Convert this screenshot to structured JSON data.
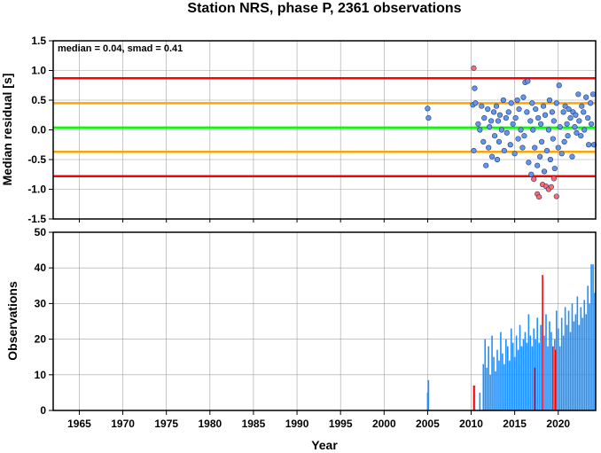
{
  "chart_data": [
    {
      "type": "scatter",
      "title": "Station NRS, phase P, 2361 observations",
      "ylabel": "Median residual [s]",
      "annotation": "median = 0.04, smad = 0.41",
      "xlim": [
        1962,
        2024.3
      ],
      "ylim": [
        -1.5,
        1.5
      ],
      "yticks": [
        1.5,
        1.0,
        0.5,
        0.0,
        -0.5,
        -1.0,
        -1.5
      ],
      "ytick_labels": [
        "1.5",
        "1.0",
        "0.5",
        "0.0",
        "-0.5",
        "-1.0",
        "-1.5"
      ],
      "grid": true,
      "reference_lines": [
        {
          "y": 0.87,
          "color": "#ff0000"
        },
        {
          "y": 0.45,
          "color": "#ffa500"
        },
        {
          "y": 0.04,
          "color": "#00ff00"
        },
        {
          "y": -0.37,
          "color": "#ffa500"
        },
        {
          "y": -0.78,
          "color": "#ff0000"
        }
      ],
      "series": [
        {
          "color": "#6495ed",
          "points": [
            [
              2005.0,
              0.36
            ],
            [
              2005.1,
              0.2
            ],
            [
              2010.2,
              0.42
            ],
            [
              2010.3,
              -0.35
            ],
            [
              2010.4,
              0.7
            ],
            [
              2010.5,
              0.45
            ],
            [
              2010.8,
              0.1
            ],
            [
              2011.0,
              0.0
            ],
            [
              2011.2,
              0.4
            ],
            [
              2011.4,
              -0.2
            ],
            [
              2011.5,
              0.2
            ],
            [
              2011.7,
              -0.6
            ],
            [
              2011.9,
              0.35
            ],
            [
              2012.0,
              -0.3
            ],
            [
              2012.1,
              0.05
            ],
            [
              2012.3,
              0.15
            ],
            [
              2012.4,
              -0.45
            ],
            [
              2012.6,
              0.3
            ],
            [
              2012.7,
              -0.1
            ],
            [
              2012.9,
              0.4
            ],
            [
              2013.0,
              -0.5
            ],
            [
              2013.1,
              0.15
            ],
            [
              2013.2,
              -0.2
            ],
            [
              2013.3,
              0.25
            ],
            [
              2013.5,
              0.0
            ],
            [
              2013.7,
              0.5
            ],
            [
              2013.8,
              -0.35
            ],
            [
              2014.0,
              0.2
            ],
            [
              2014.1,
              -0.05
            ],
            [
              2014.3,
              0.3
            ],
            [
              2014.5,
              -0.25
            ],
            [
              2014.6,
              0.45
            ],
            [
              2014.8,
              0.1
            ],
            [
              2015.0,
              -0.4
            ],
            [
              2015.1,
              0.2
            ],
            [
              2015.3,
              0.5
            ],
            [
              2015.4,
              -0.15
            ],
            [
              2015.5,
              0.35
            ],
            [
              2015.7,
              0.0
            ],
            [
              2015.9,
              -0.3
            ],
            [
              2016.0,
              0.55
            ],
            [
              2016.1,
              -0.1
            ],
            [
              2016.2,
              0.8
            ],
            [
              2016.4,
              0.3
            ],
            [
              2016.5,
              0.82
            ],
            [
              2016.6,
              -0.55
            ],
            [
              2016.8,
              0.15
            ],
            [
              2016.9,
              -0.75
            ],
            [
              2017.0,
              0.45
            ],
            [
              2017.1,
              0.0
            ],
            [
              2017.3,
              -0.3
            ],
            [
              2017.4,
              0.35
            ],
            [
              2017.6,
              -0.6
            ],
            [
              2017.7,
              0.2
            ],
            [
              2017.9,
              -0.45
            ],
            [
              2018.0,
              0.1
            ],
            [
              2018.1,
              -0.2
            ],
            [
              2018.3,
              0.4
            ],
            [
              2018.4,
              -0.7
            ],
            [
              2018.5,
              0.25
            ],
            [
              2018.7,
              -0.35
            ],
            [
              2018.9,
              0.0
            ],
            [
              2019.0,
              0.5
            ],
            [
              2019.1,
              -0.5
            ],
            [
              2019.3,
              0.3
            ],
            [
              2019.4,
              -0.15
            ],
            [
              2019.5,
              0.15
            ],
            [
              2019.6,
              -0.65
            ],
            [
              2019.8,
              0.45
            ],
            [
              2020.0,
              -0.3
            ],
            [
              2020.1,
              0.75
            ],
            [
              2020.2,
              0.05
            ],
            [
              2020.4,
              -0.4
            ],
            [
              2020.6,
              0.3
            ],
            [
              2020.7,
              -0.2
            ],
            [
              2020.8,
              0.4
            ],
            [
              2021.0,
              0.1
            ],
            [
              2021.1,
              -0.1
            ],
            [
              2021.2,
              0.35
            ],
            [
              2021.4,
              0.2
            ],
            [
              2021.6,
              -0.45
            ],
            [
              2021.7,
              0.3
            ],
            [
              2021.9,
              0.05
            ],
            [
              2022.0,
              0.25
            ],
            [
              2022.1,
              -0.05
            ],
            [
              2022.3,
              0.6
            ],
            [
              2022.4,
              0.15
            ],
            [
              2022.6,
              -0.1
            ],
            [
              2022.7,
              0.4
            ],
            [
              2022.9,
              0.3
            ],
            [
              2023.0,
              0.0
            ],
            [
              2023.2,
              0.55
            ],
            [
              2023.4,
              0.2
            ],
            [
              2023.5,
              -0.25
            ],
            [
              2023.7,
              0.45
            ],
            [
              2023.8,
              0.1
            ],
            [
              2024.0,
              0.6
            ],
            [
              2024.1,
              -0.25
            ]
          ]
        },
        {
          "color": "#ff6a6a",
          "points": [
            [
              2010.3,
              1.04
            ],
            [
              2017.2,
              -0.83
            ],
            [
              2017.6,
              -1.08
            ],
            [
              2017.8,
              -1.13
            ],
            [
              2018.2,
              -0.92
            ],
            [
              2018.6,
              -0.95
            ],
            [
              2018.9,
              -1.0
            ],
            [
              2019.2,
              -0.96
            ],
            [
              2019.5,
              -0.82
            ],
            [
              2019.8,
              -1.12
            ]
          ]
        }
      ]
    },
    {
      "type": "bar",
      "xlabel": "Year",
      "ylabel": "Observations",
      "xlim": [
        1962,
        2024.3
      ],
      "ylim": [
        0,
        50
      ],
      "xticks": [
        1965,
        1970,
        1975,
        1980,
        1985,
        1990,
        1995,
        2000,
        2005,
        2010,
        2015,
        2020
      ],
      "xtick_labels": [
        "1965",
        "1970",
        "1975",
        "1980",
        "1985",
        "1990",
        "1995",
        "2000",
        "2005",
        "2010",
        "2015",
        "2020"
      ],
      "yticks": [
        0,
        10,
        20,
        30,
        40,
        50
      ],
      "ytick_labels": [
        "0",
        "10",
        "20",
        "30",
        "40",
        "50"
      ],
      "grid": true,
      "series": [
        {
          "color": "#1e90ff",
          "bars": [
            [
              2005.0,
              5
            ],
            [
              2005.1,
              8.5
            ],
            [
              2010.4,
              7
            ],
            [
              2011.0,
              5
            ],
            [
              2011.4,
              13
            ],
            [
              2011.6,
              20
            ],
            [
              2011.8,
              12
            ],
            [
              2012.0,
              18
            ],
            [
              2012.2,
              10
            ],
            [
              2012.4,
              21
            ],
            [
              2012.6,
              15
            ],
            [
              2012.8,
              11
            ],
            [
              2013.0,
              17
            ],
            [
              2013.2,
              14
            ],
            [
              2013.4,
              22
            ],
            [
              2013.6,
              16
            ],
            [
              2013.8,
              13
            ],
            [
              2014.0,
              20
            ],
            [
              2014.2,
              18
            ],
            [
              2014.4,
              14
            ],
            [
              2014.6,
              23
            ],
            [
              2014.8,
              19
            ],
            [
              2015.0,
              15
            ],
            [
              2015.2,
              21
            ],
            [
              2015.4,
              17
            ],
            [
              2015.6,
              24
            ],
            [
              2015.8,
              18
            ],
            [
              2016.0,
              20
            ],
            [
              2016.2,
              22
            ],
            [
              2016.4,
              19
            ],
            [
              2016.6,
              27
            ],
            [
              2016.8,
              21
            ],
            [
              2017.0,
              18
            ],
            [
              2017.2,
              23
            ],
            [
              2017.4,
              20
            ],
            [
              2017.6,
              26
            ],
            [
              2017.8,
              19
            ],
            [
              2018.0,
              24
            ],
            [
              2018.4,
              21
            ],
            [
              2018.6,
              27
            ],
            [
              2018.8,
              18
            ],
            [
              2019.0,
              25
            ],
            [
              2019.2,
              22
            ],
            [
              2019.6,
              20
            ],
            [
              2019.8,
              28
            ],
            [
              2020.0,
              23
            ],
            [
              2020.2,
              18
            ],
            [
              2020.4,
              26
            ],
            [
              2020.6,
              21
            ],
            [
              2020.8,
              29
            ],
            [
              2021.0,
              24
            ],
            [
              2021.2,
              28
            ],
            [
              2021.4,
              22
            ],
            [
              2021.6,
              30
            ],
            [
              2021.8,
              25
            ],
            [
              2022.0,
              27
            ],
            [
              2022.2,
              32
            ],
            [
              2022.4,
              24
            ],
            [
              2022.6,
              29
            ],
            [
              2022.8,
              26
            ],
            [
              2023.0,
              31
            ],
            [
              2023.2,
              27
            ],
            [
              2023.4,
              35
            ],
            [
              2023.6,
              30
            ],
            [
              2023.8,
              41
            ],
            [
              2024.0,
              41
            ],
            [
              2024.2,
              33
            ]
          ]
        },
        {
          "color": "#ff0000",
          "bars": [
            [
              2010.3,
              7
            ],
            [
              2017.3,
              12
            ],
            [
              2018.2,
              38
            ],
            [
              2019.4,
              18
            ],
            [
              2019.7,
              17
            ]
          ]
        }
      ]
    }
  ]
}
